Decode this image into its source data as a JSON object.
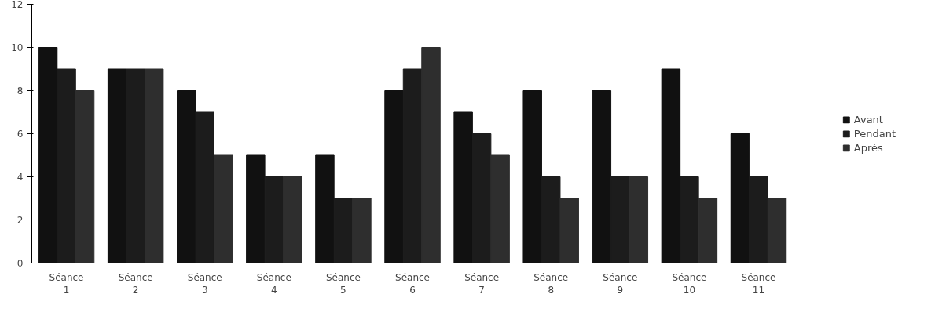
{
  "chart_data": {
    "type": "bar",
    "categories": [
      "Séance 1",
      "Séance 2",
      "Séance 3",
      "Séance 4",
      "Séance 5",
      "Séance 6",
      "Séance 7",
      "Séance 8",
      "Séance 9",
      "Séance 10",
      "Séance 11"
    ],
    "series": [
      {
        "name": "Avant",
        "color": "#111111",
        "values": [
          10,
          9,
          8,
          5,
          5,
          8,
          7,
          8,
          8,
          9,
          6
        ]
      },
      {
        "name": "Pendant",
        "color": "#1c1c1c",
        "values": [
          9,
          9,
          7,
          4,
          3,
          9,
          6,
          4,
          4,
          4,
          4
        ]
      },
      {
        "name": "Après",
        "color": "#2e2e2e",
        "values": [
          8,
          9,
          5,
          4,
          3,
          10,
          5,
          3,
          4,
          3,
          3
        ]
      }
    ],
    "ylim": [
      0,
      12
    ],
    "yticks": [
      0,
      2,
      4,
      6,
      8,
      10,
      12
    ],
    "grid": false,
    "legend": "right"
  }
}
